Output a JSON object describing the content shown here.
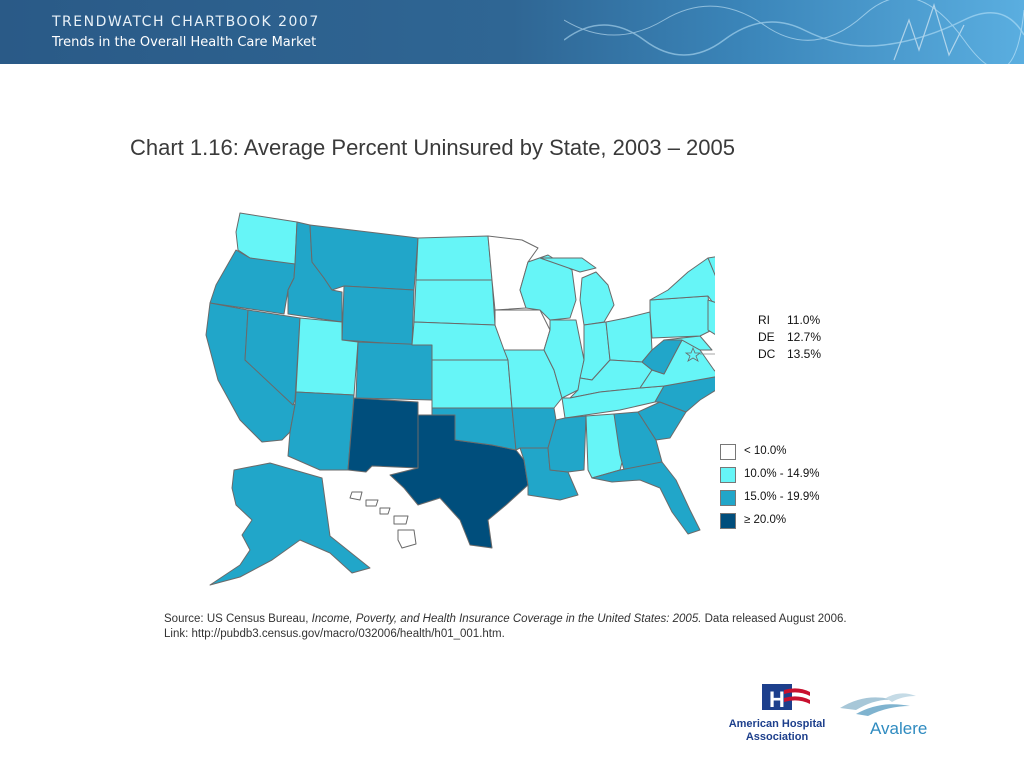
{
  "header": {
    "line1": "TRENDWATCH CHARTBOOK 2007",
    "line2": "Trends in the Overall Health Care Market"
  },
  "title": "Chart 1.16: Average Percent Uninsured by State, 2003 – 2005",
  "colors": {
    "lt10": "#ffffff",
    "10to14": "#66f5f7",
    "15to19": "#21a6c9",
    "ge20": "#004e7c",
    "header_bg": "#2f6694"
  },
  "legend": [
    {
      "label": "< 10.0%",
      "color_key": "lt10"
    },
    {
      "label": "10.0% - 14.9%",
      "color_key": "10to14"
    },
    {
      "label": "15.0% - 19.9%",
      "color_key": "15to19"
    },
    {
      "label": "≥ 20.0%",
      "color_key": "ge20"
    }
  ],
  "callouts": [
    {
      "state": "RI",
      "value": "11.0%"
    },
    {
      "state": "DE",
      "value": "12.7%"
    },
    {
      "state": "DC",
      "value": "13.5%"
    }
  ],
  "state_categories": {
    "WA": "10to14",
    "OR": "15to19",
    "CA": "15to19",
    "NV": "15to19",
    "ID": "15to19",
    "MT": "15to19",
    "WY": "15to19",
    "UT": "10to14",
    "AZ": "15to19",
    "CO": "15to19",
    "NM": "ge20",
    "TX": "ge20",
    "ND": "10to14",
    "SD": "10to14",
    "NE": "10to14",
    "KS": "10to14",
    "OK": "15to19",
    "MN": "lt10",
    "IA": "lt10",
    "MO": "10to14",
    "AR": "15to19",
    "LA": "15to19",
    "WI": "10to14",
    "IL": "10to14",
    "MI": "10to14",
    "IN": "10to14",
    "OH": "10to14",
    "KY": "10to14",
    "TN": "10to14",
    "MS": "15to19",
    "AL": "10to14",
    "GA": "15to19",
    "FL": "15to19",
    "SC": "15to19",
    "NC": "15to19",
    "VA": "10to14",
    "WV": "15to19",
    "MD": "10to14",
    "PA": "10to14",
    "NY": "10to14",
    "NJ": "10to14",
    "CT": "10to14",
    "MA": "10to14",
    "VT": "10to14",
    "NH": "10to14",
    "ME": "10to14",
    "AK": "15to19",
    "HI": "lt10"
  },
  "source": {
    "prefix": "Source: US Census Bureau, ",
    "italic": "Income, Poverty, and Health Insurance Coverage in the United States: 2005.",
    "suffix": " Data released August 2006.",
    "link": "Link: http://pubdb3.census.gov/macro/032006/health/h01_001.htm."
  },
  "logos": {
    "aha_line1": "American Hospital",
    "aha_line2": "Association",
    "aha_mark": "H",
    "avalere": "Avalere"
  }
}
